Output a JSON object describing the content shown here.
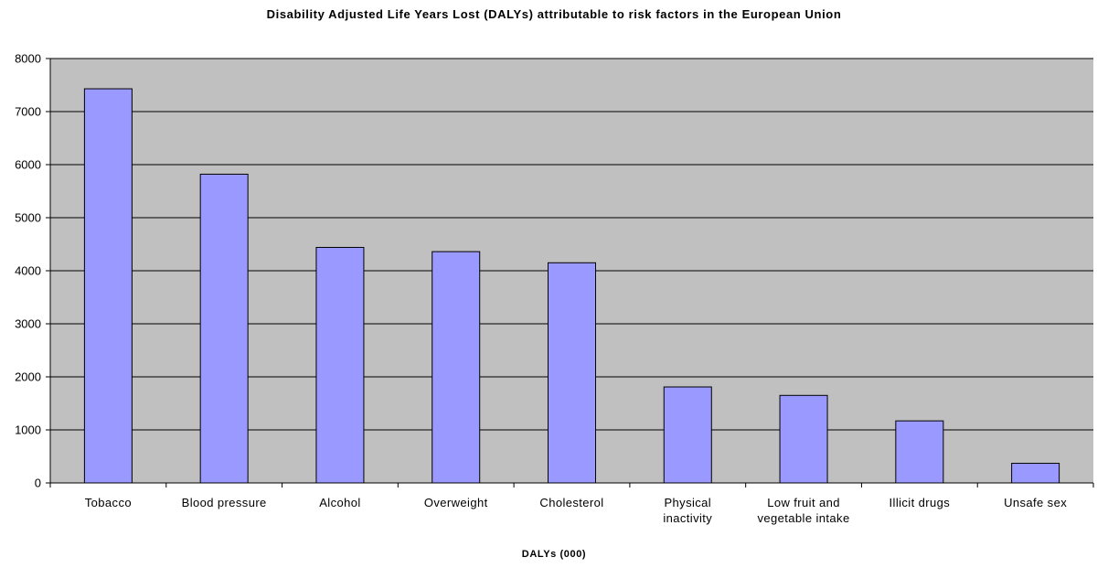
{
  "chart_data": {
    "type": "bar",
    "title": "Disability Adjusted Life Years Lost (DALYs) attributable to risk factors in the European Union",
    "xlabel": "DALYs (000)",
    "ylabel": "",
    "categories": [
      [
        "Tobacco"
      ],
      [
        "Blood pressure"
      ],
      [
        "Alcohol"
      ],
      [
        "Overweight"
      ],
      [
        "Cholesterol"
      ],
      [
        "Physical",
        "inactivity"
      ],
      [
        "Low fruit and",
        "vegetable intake"
      ],
      [
        "Illicit drugs"
      ],
      [
        "Unsafe sex"
      ]
    ],
    "values": [
      7430,
      5820,
      4440,
      4360,
      4150,
      1810,
      1650,
      1170,
      370
    ],
    "ylim": [
      0,
      8000
    ],
    "yticks": [
      0,
      1000,
      2000,
      3000,
      4000,
      5000,
      6000,
      7000,
      8000
    ],
    "grid": true,
    "legend": "none",
    "colors": {
      "bar_fill": "#9999ff",
      "bar_stroke": "#000000",
      "plot_background": "#c0c0c0",
      "gridline": "#000000"
    }
  }
}
